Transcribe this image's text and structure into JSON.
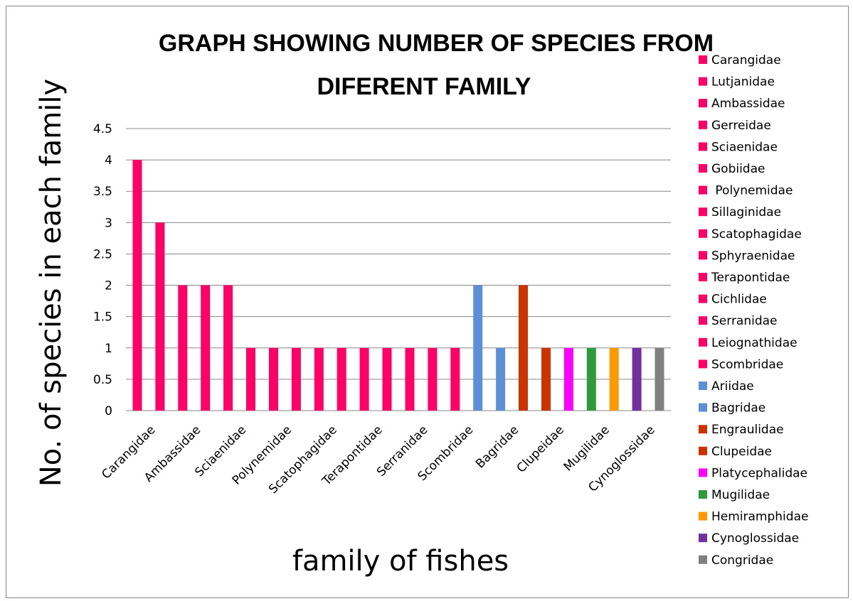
{
  "chart_data": {
    "type": "bar",
    "title_lines": [
      "GRAPH SHOWING NUMBER OF SPECIES FROM",
      "DIFERENT FAMILY"
    ],
    "xlabel": "family of fishes",
    "ylabel": "No. of species  in each family",
    "ylim": [
      0,
      4.5
    ],
    "yticks": [
      "0",
      "0.5",
      "1",
      "1.5",
      "2",
      "2.5",
      "3",
      "3.5",
      "4",
      "4.5"
    ],
    "grid": true,
    "legend_position": "right",
    "categories": [
      "Carangidae",
      "Lutjanidae",
      "Ambassidae",
      "Gerreidae",
      "Sciaenidae",
      "Gobiidae",
      " Polynemidae",
      "Sillaginidae",
      "Scatophagidae",
      "Sphyraenidae",
      "Terapontidae",
      "Cichlidae",
      "Serranidae",
      "Leiognathidae",
      "Scombridae",
      "Ariidae",
      "Bagridae",
      "Engraulidae",
      "Clupeidae",
      "Platycephalidae",
      "Mugilidae",
      "Hemiramphidae",
      "Cynoglossidae",
      "Congridae"
    ],
    "values": [
      4,
      3,
      2,
      2,
      2,
      1,
      1,
      1,
      1,
      1,
      1,
      1,
      1,
      1,
      1,
      2,
      1,
      2,
      1,
      1,
      1,
      1,
      1,
      1
    ],
    "colors": [
      "#ff0066",
      "#ff0066",
      "#ff0066",
      "#ff0066",
      "#ff0066",
      "#ff0066",
      "#ff0066",
      "#ff0066",
      "#ff0066",
      "#ff0066",
      "#ff0066",
      "#ff0066",
      "#ff0066",
      "#ff0066",
      "#ff0066",
      "#5b8fd6",
      "#5b8fd6",
      "#cc3300",
      "#cc3300",
      "#ff00ff",
      "#2e9b3a",
      "#ff9900",
      "#7030a0",
      "#808080"
    ],
    "xtick_labels": [
      "Carangidae",
      "Ambassidae",
      "Sciaenidae",
      "Polynemidae",
      "Scatophagidae",
      "Terapontidae",
      "Serranidae",
      "Scombridae",
      "Bagridae",
      "Clupeidae",
      "Mugilidae",
      "Cynoglossidae"
    ]
  }
}
